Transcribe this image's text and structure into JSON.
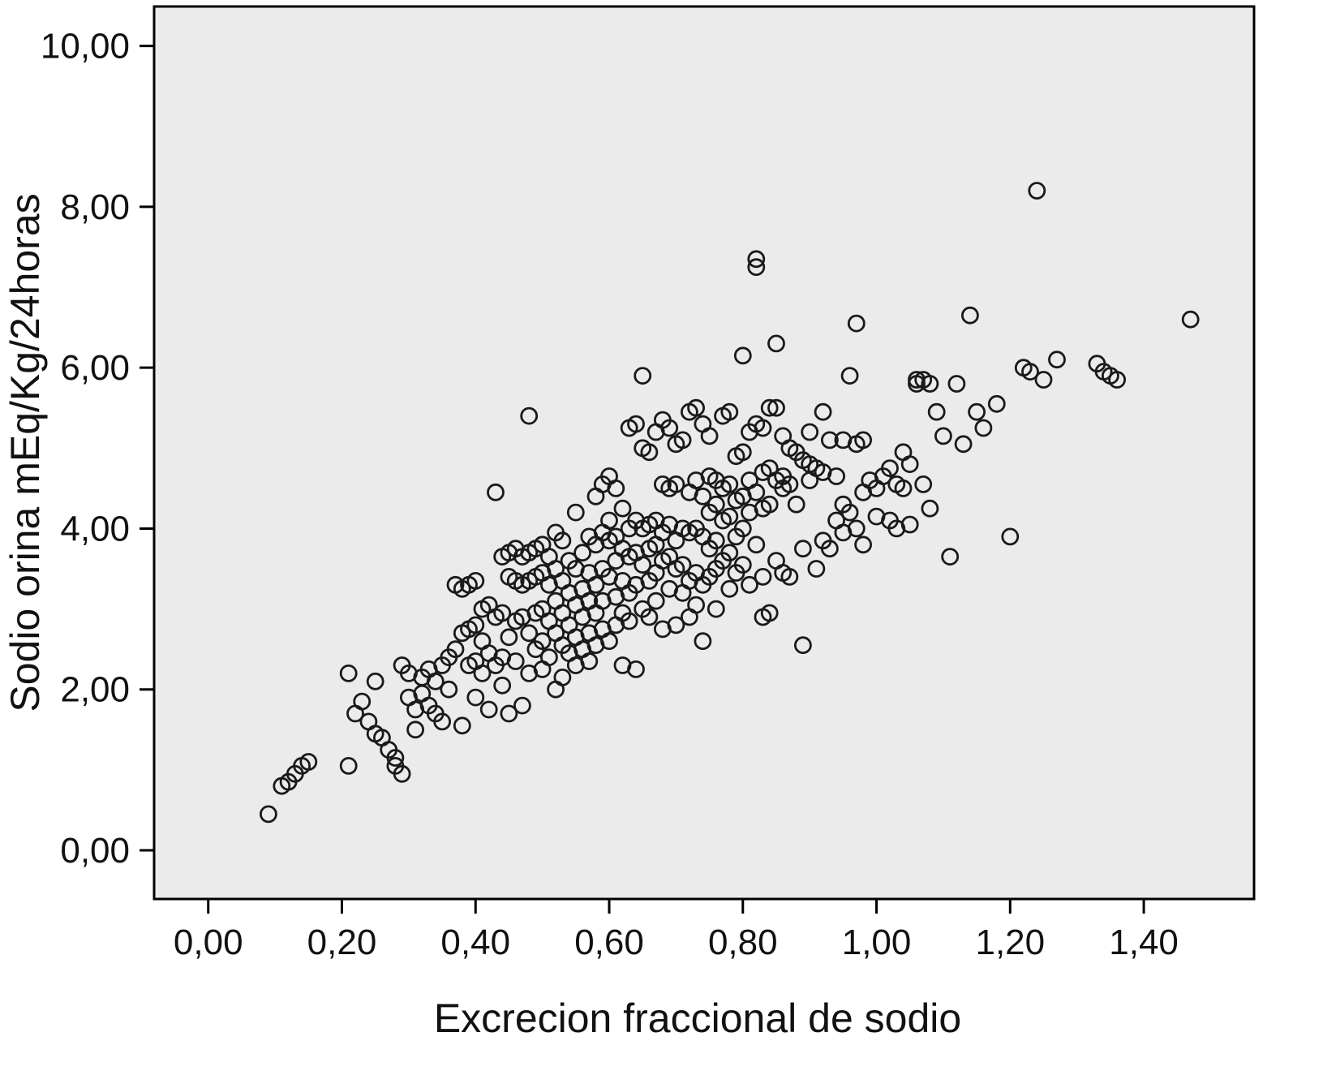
{
  "chart_data": {
    "type": "scatter",
    "title": "",
    "xlabel": "Excrecion fraccional de sodio",
    "ylabel": "Sodio orina mEq/Kg/24horas",
    "xlim": [
      -0.081,
      1.565
    ],
    "ylim": [
      -0.605,
      10.49
    ],
    "x_ticks": [
      0.0,
      0.2,
      0.4,
      0.6,
      0.8,
      1.0,
      1.2,
      1.4
    ],
    "x_tick_labels": [
      "0,00",
      "0,20",
      "0,40",
      "0,60",
      "0,80",
      "1,00",
      "1,20",
      "1,40"
    ],
    "y_ticks": [
      0,
      2,
      4,
      6,
      8,
      10
    ],
    "y_tick_labels": [
      "0,00",
      "2,00",
      "4,00",
      "6,00",
      "8,00",
      "10,00"
    ],
    "grid": false,
    "legend": "none",
    "plot_background": "#ebebeb",
    "frame_color": "#000000",
    "marker": {
      "shape": "open-circle",
      "stroke": "#1a1a1a",
      "radius": 9.5,
      "stroke_width": 2.8
    },
    "points": [
      [
        0.09,
        0.45
      ],
      [
        0.11,
        0.8
      ],
      [
        0.12,
        0.85
      ],
      [
        0.13,
        0.95
      ],
      [
        0.14,
        1.05
      ],
      [
        0.15,
        1.1
      ],
      [
        0.21,
        1.05
      ],
      [
        0.21,
        2.2
      ],
      [
        0.22,
        1.7
      ],
      [
        0.23,
        1.85
      ],
      [
        0.24,
        1.6
      ],
      [
        0.25,
        1.45
      ],
      [
        0.25,
        2.1
      ],
      [
        0.26,
        1.4
      ],
      [
        0.27,
        1.25
      ],
      [
        0.28,
        1.15
      ],
      [
        0.28,
        1.05
      ],
      [
        0.29,
        0.95
      ],
      [
        0.29,
        2.3
      ],
      [
        0.3,
        2.2
      ],
      [
        0.3,
        1.9
      ],
      [
        0.31,
        1.75
      ],
      [
        0.31,
        1.5
      ],
      [
        0.32,
        2.15
      ],
      [
        0.32,
        1.95
      ],
      [
        0.33,
        2.25
      ],
      [
        0.33,
        1.8
      ],
      [
        0.34,
        2.1
      ],
      [
        0.34,
        1.7
      ],
      [
        0.35,
        2.3
      ],
      [
        0.35,
        1.6
      ],
      [
        0.36,
        2.4
      ],
      [
        0.36,
        2.0
      ],
      [
        0.37,
        3.3
      ],
      [
        0.37,
        2.5
      ],
      [
        0.38,
        3.25
      ],
      [
        0.38,
        2.7
      ],
      [
        0.38,
        1.55
      ],
      [
        0.39,
        3.3
      ],
      [
        0.39,
        2.75
      ],
      [
        0.39,
        2.3
      ],
      [
        0.4,
        3.35
      ],
      [
        0.4,
        2.8
      ],
      [
        0.4,
        2.35
      ],
      [
        0.4,
        1.9
      ],
      [
        0.41,
        3.0
      ],
      [
        0.41,
        2.6
      ],
      [
        0.41,
        2.2
      ],
      [
        0.42,
        3.05
      ],
      [
        0.42,
        2.45
      ],
      [
        0.42,
        1.75
      ],
      [
        0.43,
        4.45
      ],
      [
        0.43,
        2.9
      ],
      [
        0.43,
        2.3
      ],
      [
        0.44,
        3.65
      ],
      [
        0.44,
        2.95
      ],
      [
        0.44,
        2.4
      ],
      [
        0.44,
        2.05
      ],
      [
        0.45,
        3.7
      ],
      [
        0.45,
        3.4
      ],
      [
        0.45,
        2.65
      ],
      [
        0.45,
        1.7
      ],
      [
        0.46,
        3.75
      ],
      [
        0.46,
        3.35
      ],
      [
        0.46,
        2.85
      ],
      [
        0.46,
        2.35
      ],
      [
        0.47,
        3.65
      ],
      [
        0.47,
        3.3
      ],
      [
        0.47,
        2.9
      ],
      [
        0.47,
        1.8
      ],
      [
        0.48,
        5.4
      ],
      [
        0.48,
        3.7
      ],
      [
        0.48,
        3.35
      ],
      [
        0.48,
        2.7
      ],
      [
        0.48,
        2.2
      ],
      [
        0.49,
        3.75
      ],
      [
        0.49,
        3.4
      ],
      [
        0.49,
        2.95
      ],
      [
        0.49,
        2.5
      ],
      [
        0.5,
        3.8
      ],
      [
        0.5,
        3.45
      ],
      [
        0.5,
        3.0
      ],
      [
        0.5,
        2.6
      ],
      [
        0.5,
        2.25
      ],
      [
        0.51,
        3.65
      ],
      [
        0.51,
        3.3
      ],
      [
        0.51,
        2.85
      ],
      [
        0.51,
        2.4
      ],
      [
        0.52,
        3.95
      ],
      [
        0.52,
        3.5
      ],
      [
        0.52,
        3.1
      ],
      [
        0.52,
        2.7
      ],
      [
        0.52,
        2.0
      ],
      [
        0.53,
        3.85
      ],
      [
        0.53,
        3.35
      ],
      [
        0.53,
        2.95
      ],
      [
        0.53,
        2.55
      ],
      [
        0.53,
        2.15
      ],
      [
        0.54,
        3.6
      ],
      [
        0.54,
        3.2
      ],
      [
        0.54,
        2.8
      ],
      [
        0.54,
        2.45
      ],
      [
        0.55,
        4.2
      ],
      [
        0.55,
        3.5
      ],
      [
        0.55,
        3.05
      ],
      [
        0.55,
        2.65
      ],
      [
        0.55,
        2.3
      ],
      [
        0.56,
        3.7
      ],
      [
        0.56,
        3.25
      ],
      [
        0.56,
        2.9
      ],
      [
        0.56,
        2.5
      ],
      [
        0.57,
        3.9
      ],
      [
        0.57,
        3.45
      ],
      [
        0.57,
        3.1
      ],
      [
        0.57,
        2.7
      ],
      [
        0.57,
        2.35
      ],
      [
        0.58,
        4.4
      ],
      [
        0.58,
        3.8
      ],
      [
        0.58,
        3.3
      ],
      [
        0.58,
        2.95
      ],
      [
        0.58,
        2.55
      ],
      [
        0.59,
        4.55
      ],
      [
        0.59,
        3.95
      ],
      [
        0.59,
        3.5
      ],
      [
        0.59,
        3.1
      ],
      [
        0.59,
        2.75
      ],
      [
        0.6,
        4.65
      ],
      [
        0.6,
        4.1
      ],
      [
        0.6,
        3.85
      ],
      [
        0.6,
        3.4
      ],
      [
        0.6,
        2.6
      ],
      [
        0.61,
        4.5
      ],
      [
        0.61,
        3.9
      ],
      [
        0.61,
        3.6
      ],
      [
        0.61,
        3.15
      ],
      [
        0.61,
        2.8
      ],
      [
        0.62,
        4.25
      ],
      [
        0.62,
        3.75
      ],
      [
        0.62,
        3.35
      ],
      [
        0.62,
        2.95
      ],
      [
        0.62,
        2.3
      ],
      [
        0.63,
        5.25
      ],
      [
        0.63,
        4.0
      ],
      [
        0.63,
        3.65
      ],
      [
        0.63,
        3.2
      ],
      [
        0.63,
        2.85
      ],
      [
        0.64,
        5.3
      ],
      [
        0.64,
        4.1
      ],
      [
        0.64,
        3.7
      ],
      [
        0.64,
        3.3
      ],
      [
        0.64,
        2.25
      ],
      [
        0.65,
        5.9
      ],
      [
        0.65,
        5.0
      ],
      [
        0.65,
        4.0
      ],
      [
        0.65,
        3.55
      ],
      [
        0.65,
        3.0
      ],
      [
        0.66,
        4.95
      ],
      [
        0.66,
        4.05
      ],
      [
        0.66,
        3.75
      ],
      [
        0.66,
        3.35
      ],
      [
        0.66,
        2.9
      ],
      [
        0.67,
        5.2
      ],
      [
        0.67,
        4.1
      ],
      [
        0.67,
        3.8
      ],
      [
        0.67,
        3.45
      ],
      [
        0.67,
        3.1
      ],
      [
        0.68,
        5.35
      ],
      [
        0.68,
        4.55
      ],
      [
        0.68,
        3.95
      ],
      [
        0.68,
        3.6
      ],
      [
        0.68,
        2.75
      ],
      [
        0.69,
        5.25
      ],
      [
        0.69,
        4.5
      ],
      [
        0.69,
        4.05
      ],
      [
        0.69,
        3.65
      ],
      [
        0.69,
        3.25
      ],
      [
        0.7,
        5.05
      ],
      [
        0.7,
        4.55
      ],
      [
        0.7,
        3.85
      ],
      [
        0.7,
        3.5
      ],
      [
        0.7,
        2.8
      ],
      [
        0.71,
        5.1
      ],
      [
        0.71,
        4.0
      ],
      [
        0.71,
        3.55
      ],
      [
        0.71,
        3.2
      ],
      [
        0.72,
        5.45
      ],
      [
        0.72,
        4.45
      ],
      [
        0.72,
        3.95
      ],
      [
        0.72,
        3.35
      ],
      [
        0.72,
        2.9
      ],
      [
        0.73,
        5.5
      ],
      [
        0.73,
        4.6
      ],
      [
        0.73,
        4.0
      ],
      [
        0.73,
        3.45
      ],
      [
        0.73,
        3.05
      ],
      [
        0.74,
        5.3
      ],
      [
        0.74,
        4.4
      ],
      [
        0.74,
        3.9
      ],
      [
        0.74,
        3.3
      ],
      [
        0.74,
        2.6
      ],
      [
        0.75,
        5.15
      ],
      [
        0.75,
        4.65
      ],
      [
        0.75,
        4.2
      ],
      [
        0.75,
        3.75
      ],
      [
        0.75,
        3.4
      ],
      [
        0.76,
        4.6
      ],
      [
        0.76,
        4.3
      ],
      [
        0.76,
        3.85
      ],
      [
        0.76,
        3.5
      ],
      [
        0.76,
        3.0
      ],
      [
        0.77,
        5.4
      ],
      [
        0.77,
        4.5
      ],
      [
        0.77,
        4.1
      ],
      [
        0.77,
        3.6
      ],
      [
        0.78,
        5.45
      ],
      [
        0.78,
        4.55
      ],
      [
        0.78,
        4.15
      ],
      [
        0.78,
        3.7
      ],
      [
        0.78,
        3.25
      ],
      [
        0.79,
        4.9
      ],
      [
        0.79,
        4.35
      ],
      [
        0.79,
        3.9
      ],
      [
        0.79,
        3.45
      ],
      [
        0.8,
        6.15
      ],
      [
        0.8,
        4.95
      ],
      [
        0.8,
        4.4
      ],
      [
        0.8,
        4.0
      ],
      [
        0.8,
        3.55
      ],
      [
        0.81,
        5.2
      ],
      [
        0.81,
        4.6
      ],
      [
        0.81,
        4.2
      ],
      [
        0.81,
        3.3
      ],
      [
        0.82,
        7.35
      ],
      [
        0.82,
        7.25
      ],
      [
        0.82,
        5.3
      ],
      [
        0.82,
        4.45
      ],
      [
        0.82,
        3.8
      ],
      [
        0.83,
        5.25
      ],
      [
        0.83,
        4.7
      ],
      [
        0.83,
        4.25
      ],
      [
        0.83,
        3.4
      ],
      [
        0.83,
        2.9
      ],
      [
        0.84,
        5.5
      ],
      [
        0.84,
        4.75
      ],
      [
        0.84,
        4.3
      ],
      [
        0.84,
        2.95
      ],
      [
        0.85,
        6.3
      ],
      [
        0.85,
        5.5
      ],
      [
        0.85,
        4.6
      ],
      [
        0.85,
        3.6
      ],
      [
        0.86,
        5.15
      ],
      [
        0.86,
        4.65
      ],
      [
        0.86,
        4.5
      ],
      [
        0.86,
        3.45
      ],
      [
        0.87,
        5.0
      ],
      [
        0.87,
        4.55
      ],
      [
        0.87,
        3.4
      ],
      [
        0.88,
        4.95
      ],
      [
        0.88,
        4.3
      ],
      [
        0.89,
        4.85
      ],
      [
        0.89,
        3.75
      ],
      [
        0.89,
        2.55
      ],
      [
        0.9,
        5.2
      ],
      [
        0.9,
        4.8
      ],
      [
        0.9,
        4.6
      ],
      [
        0.91,
        4.75
      ],
      [
        0.91,
        3.5
      ],
      [
        0.92,
        5.45
      ],
      [
        0.92,
        4.7
      ],
      [
        0.92,
        3.85
      ],
      [
        0.93,
        5.1
      ],
      [
        0.93,
        3.75
      ],
      [
        0.94,
        4.65
      ],
      [
        0.94,
        4.1
      ],
      [
        0.95,
        5.1
      ],
      [
        0.95,
        4.3
      ],
      [
        0.95,
        3.95
      ],
      [
        0.96,
        5.9
      ],
      [
        0.96,
        4.2
      ],
      [
        0.97,
        6.55
      ],
      [
        0.97,
        5.05
      ],
      [
        0.97,
        4.0
      ],
      [
        0.98,
        5.1
      ],
      [
        0.98,
        4.45
      ],
      [
        0.98,
        3.8
      ],
      [
        0.99,
        4.6
      ],
      [
        1.0,
        4.5
      ],
      [
        1.0,
        4.15
      ],
      [
        1.01,
        4.65
      ],
      [
        1.02,
        4.75
      ],
      [
        1.02,
        4.1
      ],
      [
        1.03,
        4.55
      ],
      [
        1.03,
        4.0
      ],
      [
        1.04,
        4.95
      ],
      [
        1.04,
        4.5
      ],
      [
        1.05,
        4.8
      ],
      [
        1.05,
        4.05
      ],
      [
        1.06,
        5.85
      ],
      [
        1.06,
        5.8
      ],
      [
        1.07,
        5.85
      ],
      [
        1.07,
        4.55
      ],
      [
        1.08,
        5.8
      ],
      [
        1.08,
        4.25
      ],
      [
        1.09,
        5.45
      ],
      [
        1.1,
        5.15
      ],
      [
        1.11,
        3.65
      ],
      [
        1.12,
        5.8
      ],
      [
        1.13,
        5.05
      ],
      [
        1.14,
        6.65
      ],
      [
        1.15,
        5.45
      ],
      [
        1.16,
        5.25
      ],
      [
        1.18,
        5.55
      ],
      [
        1.2,
        3.9
      ],
      [
        1.22,
        6.0
      ],
      [
        1.23,
        5.95
      ],
      [
        1.24,
        8.2
      ],
      [
        1.25,
        5.85
      ],
      [
        1.27,
        6.1
      ],
      [
        1.33,
        6.05
      ],
      [
        1.34,
        5.95
      ],
      [
        1.35,
        5.9
      ],
      [
        1.36,
        5.85
      ],
      [
        1.47,
        6.6
      ]
    ]
  }
}
